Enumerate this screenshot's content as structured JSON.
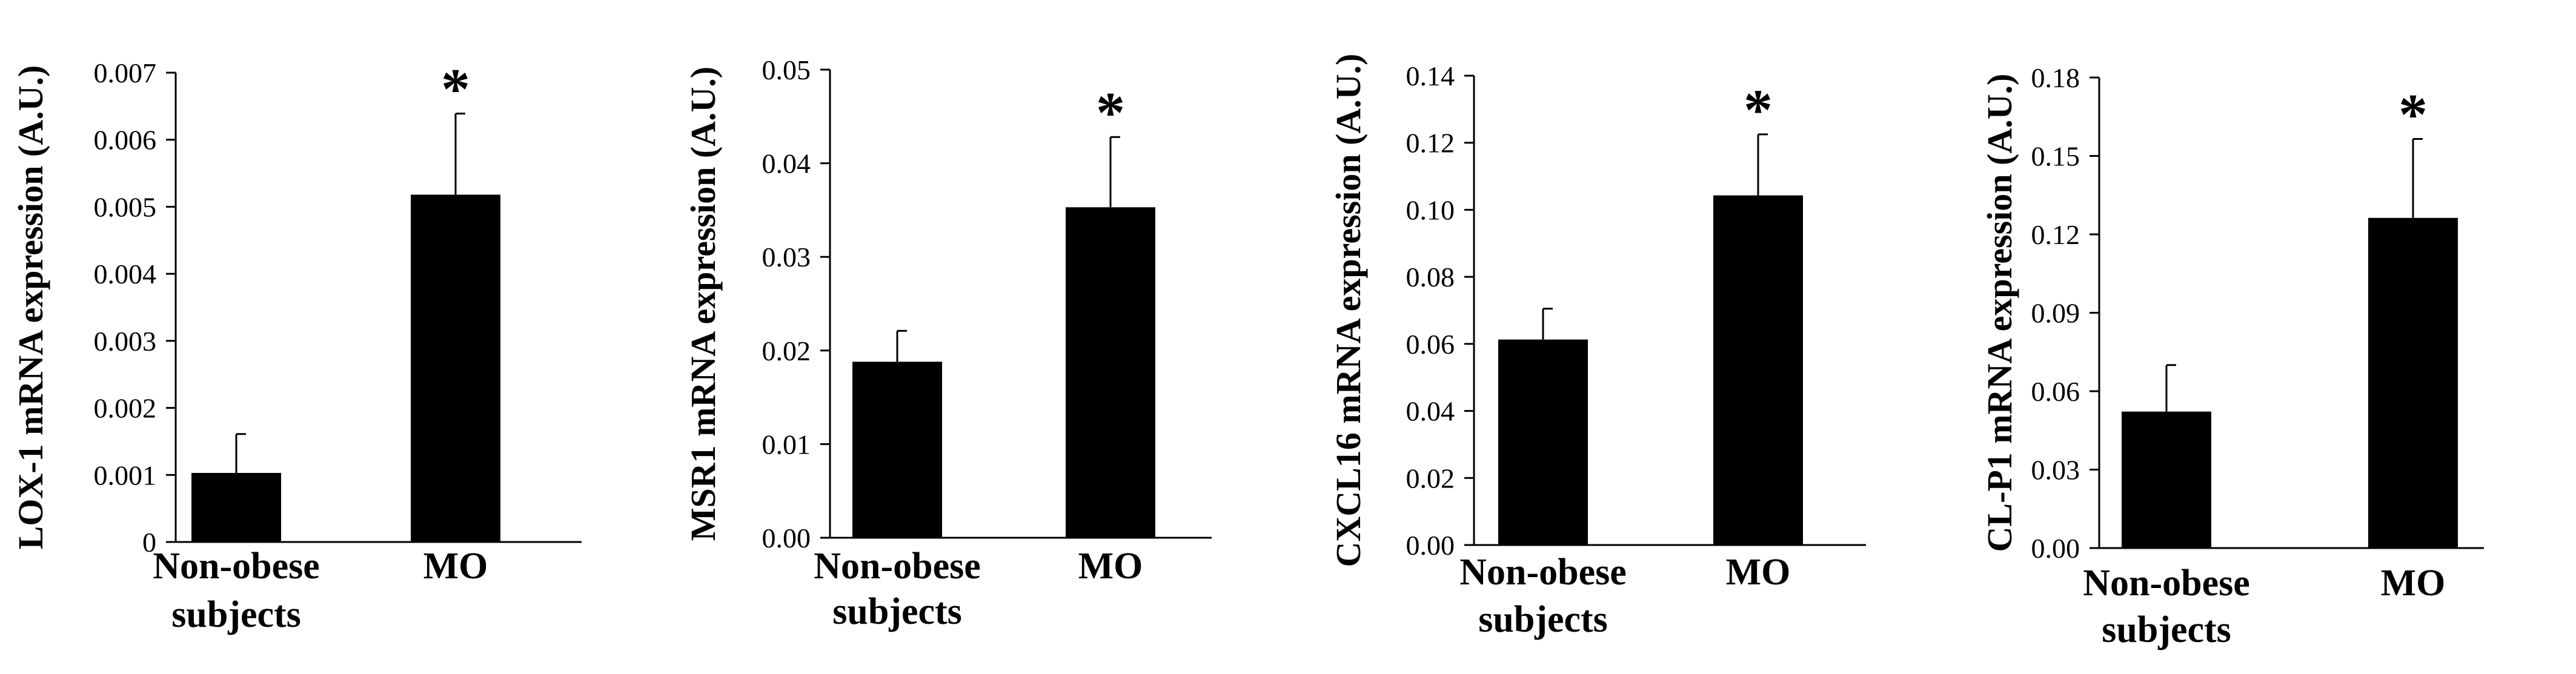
{
  "chart_data": [
    {
      "type": "bar",
      "categories": [
        [
          "Non-obese",
          "subjects"
        ],
        [
          "MO"
        ]
      ],
      "values": [
        0.00103,
        0.00518
      ],
      "errors": [
        0.00058,
        0.00121
      ],
      "significance": [
        "",
        "*"
      ],
      "ylabel": "LOX-1 mRNA expression (A.U.)",
      "ylim": [
        0,
        0.007
      ],
      "yticks": [
        "0",
        "0.001",
        "0.002",
        "0.003",
        "0.004",
        "0.005",
        "0.006",
        "0.007"
      ],
      "color": "#000000"
    },
    {
      "type": "bar",
      "categories": [
        [
          "Non-obese",
          "subjects"
        ],
        [
          "MO"
        ]
      ],
      "values": [
        0.0188,
        0.0353
      ],
      "errors": [
        0.0033,
        0.0075
      ],
      "significance": [
        "",
        "*"
      ],
      "ylabel": "MSR1 mRNA expression (A.U.)",
      "ylim": [
        0,
        0.05
      ],
      "yticks": [
        "0.00",
        "0.01",
        "0.02",
        "0.03",
        "0.04",
        "0.05"
      ],
      "color": "#000000"
    },
    {
      "type": "bar",
      "categories": [
        [
          "Non-obese",
          "subjects"
        ],
        [
          "MO"
        ]
      ],
      "values": [
        0.0613,
        0.1043
      ],
      "errors": [
        0.0092,
        0.0182
      ],
      "significance": [
        "",
        "*"
      ],
      "ylabel": "CXCL16 mRNA expression (A.U.)",
      "ylim": [
        0,
        0.14
      ],
      "yticks": [
        "0.00",
        "0.02",
        "0.04",
        "0.06",
        "0.08",
        "0.10",
        "0.12",
        "0.14"
      ],
      "color": "#000000"
    },
    {
      "type": "bar",
      "categories": [
        [
          "Non-obese",
          "subjects"
        ],
        [
          "MO"
        ]
      ],
      "values": [
        0.0522,
        0.1263
      ],
      "errors": [
        0.0178,
        0.0302
      ],
      "significance": [
        "",
        "*"
      ],
      "ylabel": "CL-P1 mRNA expression (A.U.)",
      "ylim": [
        0,
        0.18
      ],
      "yticks": [
        "0.00",
        "0.03",
        "0.06",
        "0.09",
        "0.12",
        "0.15",
        "0.18"
      ],
      "color": "#000000"
    }
  ]
}
